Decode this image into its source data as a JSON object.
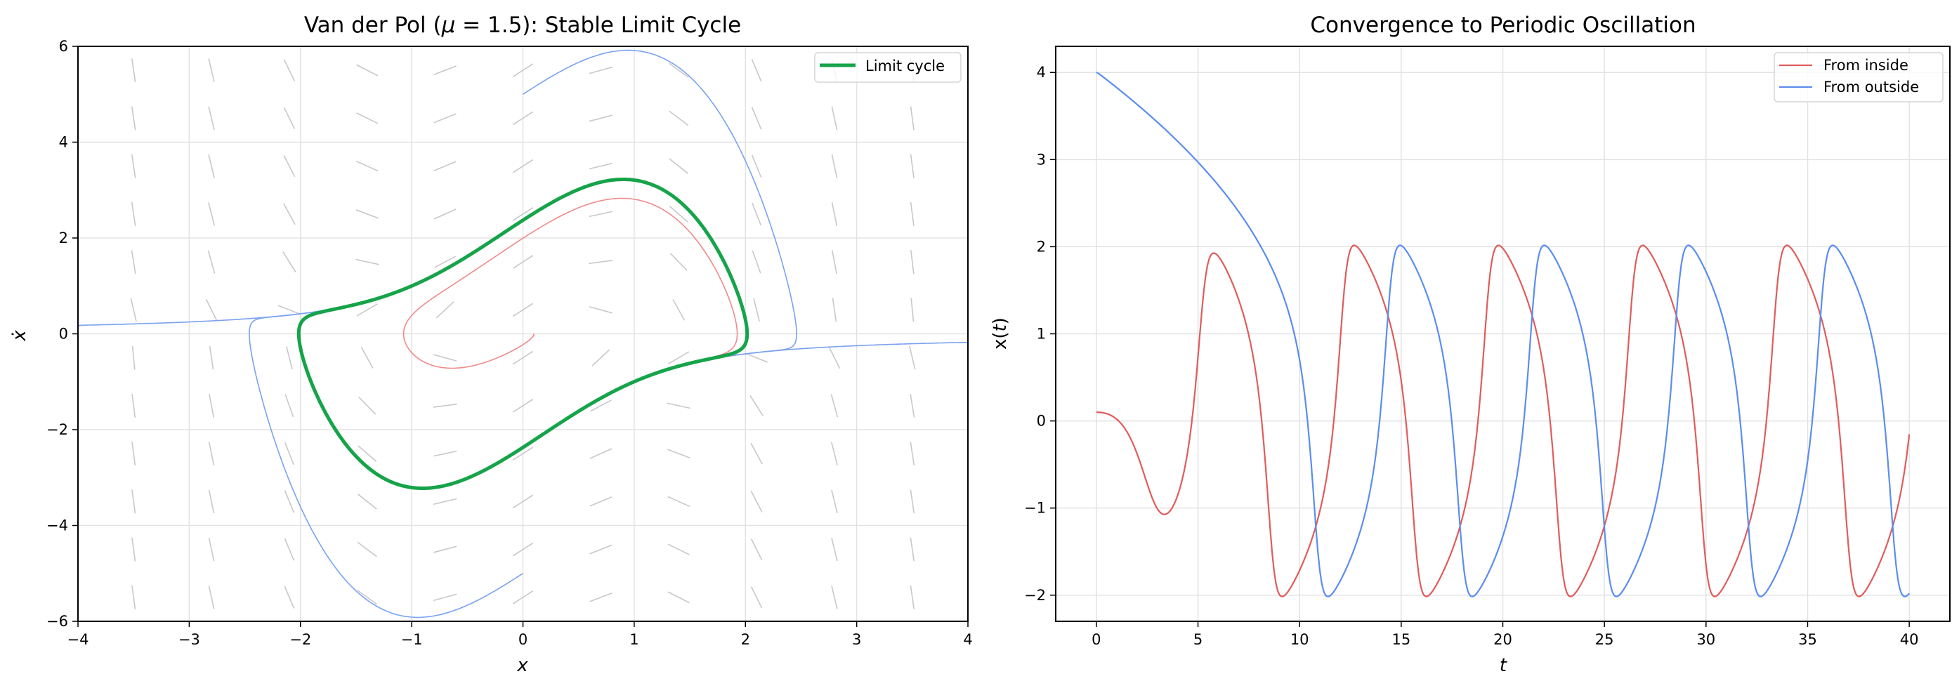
{
  "chart_data": [
    {
      "type": "line",
      "subtype": "phase-portrait",
      "title": "Van der Pol (μ = 1.5): Stable Limit Cycle",
      "title_parts": {
        "prefix": "Van der Pol (",
        "mu": "μ",
        "eq": " = 1.5",
        "suffix": "): Stable Limit Cycle"
      },
      "mu": 1.5,
      "xlabel": "x",
      "ylabel": "ẋ",
      "xlim": [
        -4,
        4
      ],
      "ylim": [
        -6,
        6
      ],
      "xticks": [
        -4,
        -3,
        -2,
        -1,
        0,
        1,
        2,
        3,
        4
      ],
      "xtick_labels": [
        "−4",
        "−3",
        "−2",
        "−1",
        "0",
        "1",
        "2",
        "3",
        "4"
      ],
      "yticks": [
        -6,
        -4,
        -2,
        0,
        2,
        4,
        6
      ],
      "ytick_labels": [
        "−6",
        "−4",
        "−2",
        "0",
        "2",
        "4",
        "6"
      ],
      "grid": true,
      "legend": {
        "position": "upper right",
        "entries": [
          {
            "label": "Limit cycle",
            "color": "#16a34a"
          }
        ]
      },
      "direction_field": {
        "x_range": [
          -3.5,
          3.5
        ],
        "y_range": [
          -5.5,
          5.5
        ],
        "nx": 11,
        "ny": 12,
        "color": "#c8c8cc"
      },
      "series": [
        {
          "name": "Limit cycle",
          "color": "#16a34a",
          "width": 5,
          "x_range": [
            -2.02,
            2.02
          ],
          "y_range": [
            -3.22,
            3.22
          ]
        },
        {
          "name": "Trajectory from inside",
          "color": "#ef8a8a",
          "width": 1.6,
          "start": [
            0.1,
            0.0
          ]
        },
        {
          "name": "Trajectory from outside (top)",
          "color": "#7aa2f0",
          "width": 1.6,
          "start": [
            0.0,
            5.0
          ]
        },
        {
          "name": "Trajectory from outside (bottom)",
          "color": "#7aa2f0",
          "width": 1.6,
          "start": [
            0.0,
            -5.0
          ]
        },
        {
          "name": "Trajectory from outside (left)",
          "color": "#7aa2f0",
          "width": 1.6,
          "start": [
            -4.0,
            0.15
          ]
        },
        {
          "name": "Trajectory from outside (right)",
          "color": "#7aa2f0",
          "width": 1.6,
          "start": [
            4.0,
            -0.2
          ]
        }
      ]
    },
    {
      "type": "line",
      "title": "Convergence to Periodic Oscillation",
      "xlabel": "t",
      "ylabel": "x(t)",
      "xlim": [
        -2,
        42
      ],
      "ylim": [
        -2.3,
        4.3
      ],
      "xticks": [
        0,
        5,
        10,
        15,
        20,
        25,
        30,
        35,
        40
      ],
      "xtick_labels": [
        "0",
        "5",
        "10",
        "15",
        "20",
        "25",
        "30",
        "35",
        "40"
      ],
      "yticks": [
        -2,
        -1,
        0,
        1,
        2,
        3,
        4
      ],
      "ytick_labels": [
        "−2",
        "−1",
        "0",
        "1",
        "2",
        "3",
        "4"
      ],
      "grid": true,
      "legend": {
        "position": "upper right",
        "entries": [
          {
            "label": "From inside",
            "color": "#e05c5c"
          },
          {
            "label": "From outside",
            "color": "#5b8def"
          }
        ]
      },
      "series": [
        {
          "name": "From inside",
          "color": "#e05c5c",
          "x0": 0.1,
          "v0": 0.0,
          "t_range": [
            0,
            40
          ],
          "key_points": [
            [
              0,
              0.1
            ],
            [
              3.4,
              -1.07
            ],
            [
              5.8,
              1.92
            ],
            [
              9.1,
              -2.02
            ],
            [
              12.7,
              2.02
            ],
            [
              16.2,
              -2.02
            ],
            [
              19.8,
              2.02
            ],
            [
              23.3,
              -2.02
            ],
            [
              26.9,
              2.02
            ],
            [
              30.4,
              -2.02
            ],
            [
              34.0,
              2.02
            ],
            [
              37.5,
              -2.02
            ],
            [
              40,
              -0.15
            ]
          ]
        },
        {
          "name": "From outside",
          "color": "#5b8def",
          "x0": 4.0,
          "v0": 0.0,
          "t_range": [
            0,
            40
          ],
          "key_points": [
            [
              0,
              4.0
            ],
            [
              5,
              2.9
            ],
            [
              10,
              1.0
            ],
            [
              11.4,
              -2.02
            ],
            [
              15.0,
              2.02
            ],
            [
              18.5,
              -2.02
            ],
            [
              22.1,
              2.02
            ],
            [
              25.6,
              -2.02
            ],
            [
              29.2,
              2.02
            ],
            [
              32.7,
              -2.02
            ],
            [
              36.3,
              2.02
            ],
            [
              39.8,
              -2.02
            ],
            [
              40,
              -1.97
            ]
          ]
        }
      ]
    }
  ]
}
